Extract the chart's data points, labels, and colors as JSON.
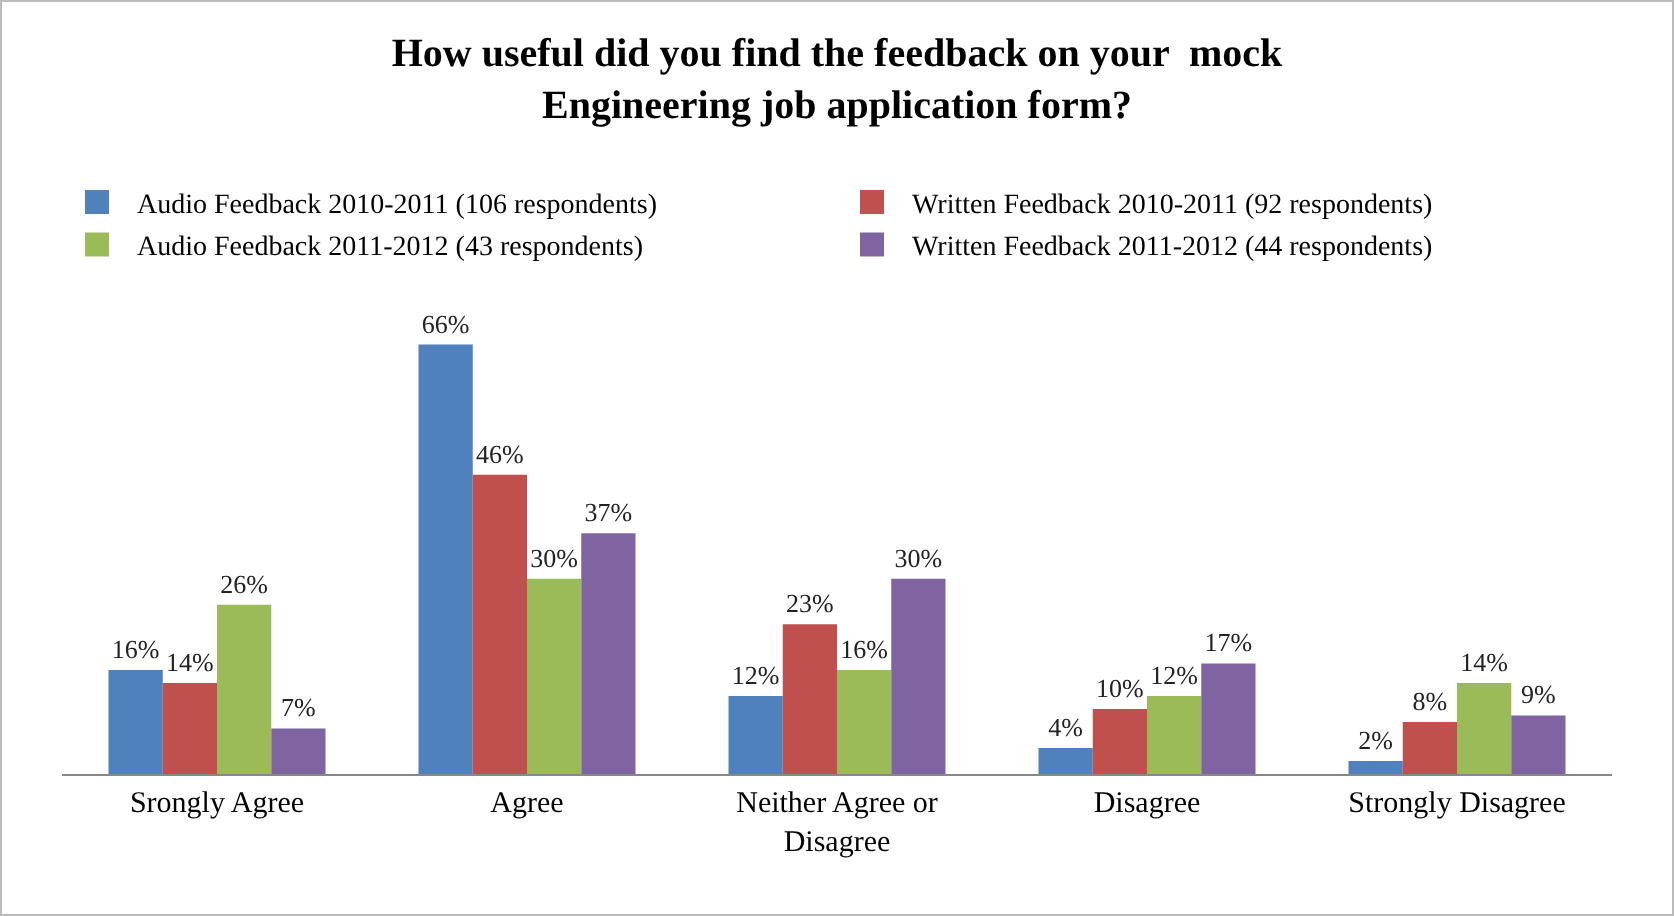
{
  "chart_data": {
    "type": "bar",
    "title": "How useful did you find the feedback on your  mock\nEngineering job application form?",
    "categories": [
      "Srongly Agree",
      "Agree",
      "Neither Agree or Disagree",
      "Disagree",
      "Strongly Disagree"
    ],
    "series": [
      {
        "name": "Audio Feedback 2010-2011 (106 respondents)",
        "color": "#4f81bd",
        "values": [
          16,
          66,
          12,
          4,
          2
        ],
        "value_labels": [
          "16%",
          "66%",
          "12%",
          "4%",
          "2%"
        ]
      },
      {
        "name": "Written Feedback 2010-2011 (92 respondents)",
        "color": "#c0504d",
        "values": [
          14,
          46,
          23,
          10,
          8
        ],
        "value_labels": [
          "14%",
          "46%",
          "23%",
          "10%",
          "8%"
        ]
      },
      {
        "name": "Audio Feedback 2011-2012 (43 respondents)",
        "color": "#9bbb59",
        "values": [
          26,
          30,
          16,
          12,
          14
        ],
        "value_labels": [
          "26%",
          "30%",
          "16%",
          "12%",
          "14%"
        ]
      },
      {
        "name": "Written Feedback 2011-2012 (44 respondents)",
        "color": "#8064a2",
        "values": [
          7,
          37,
          30,
          17,
          9
        ],
        "value_labels": [
          "7%",
          "37%",
          "30%",
          "17%",
          "9%"
        ]
      }
    ],
    "legend": "top"
  }
}
